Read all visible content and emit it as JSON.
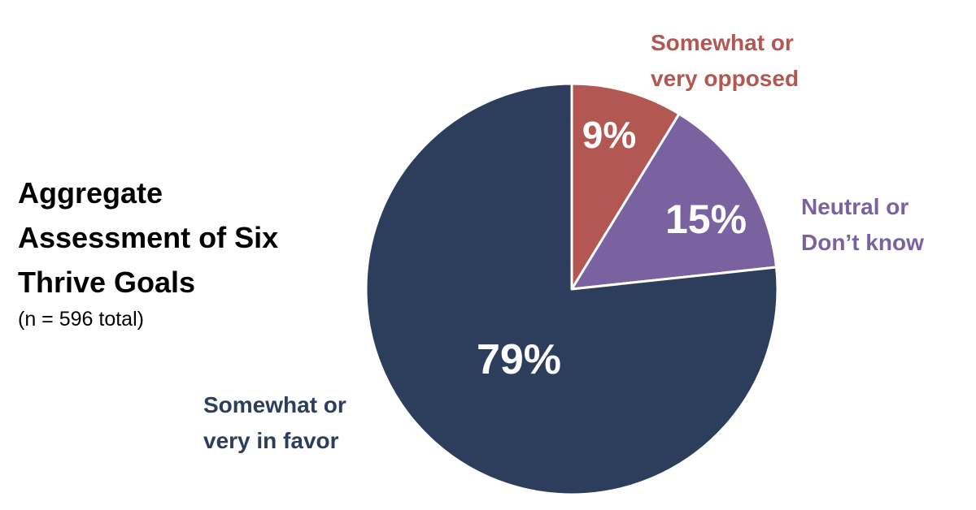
{
  "title_lines": [
    "Aggregate",
    "Assessment of Six",
    "Thrive Goals"
  ],
  "subtitle": "(n = 596 total)",
  "chart_data": {
    "type": "pie",
    "start_angle": "12 o'clock, clockwise",
    "slices": [
      {
        "name_lines": [
          "Somewhat or",
          "very opposed"
        ],
        "value": 9,
        "label": "9%",
        "color": "#b25751"
      },
      {
        "name_lines": [
          "Neutral or",
          "Don’t know"
        ],
        "value": 15,
        "label": "15%",
        "color": "#7a62a0"
      },
      {
        "name_lines": [
          "Somewhat or",
          "very in favor"
        ],
        "value": 79,
        "label": "79%",
        "color": "#2d3e5c"
      }
    ]
  }
}
